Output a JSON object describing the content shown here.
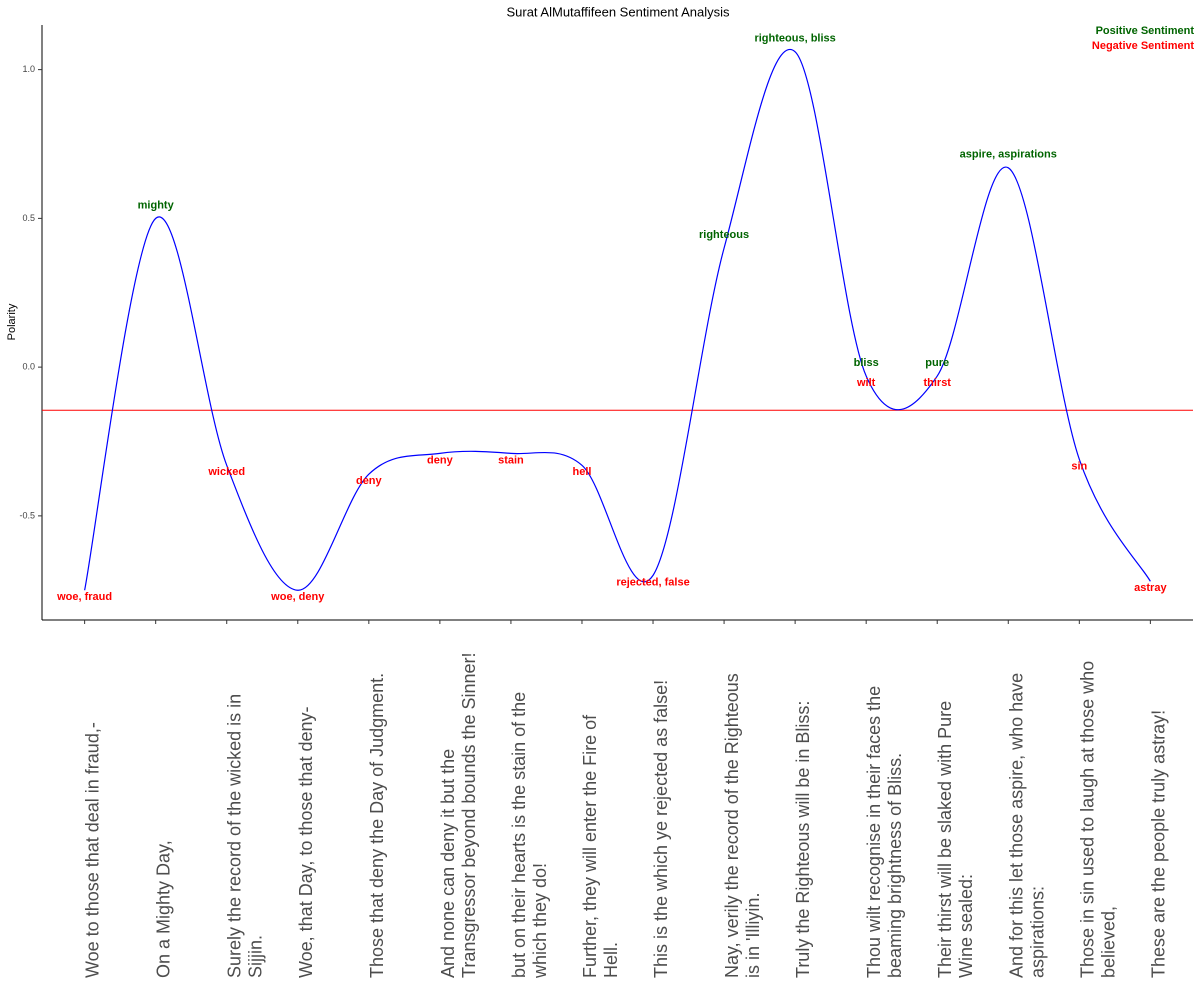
{
  "chart_data": {
    "type": "line",
    "title": "Surat AlMutaffifeen Sentiment Analysis",
    "y_label": "Polarity",
    "categories": [
      "Woe to those that deal in fraud,-",
      "On a Mighty Day,",
      "Surely the record of the wicked is in Sijjin.",
      "Woe, that Day, to those that deny-",
      "Those that deny the Day of Judgment.",
      "And none can deny it but the Transgressor beyond bounds the Sinner!",
      "but on their hearts is the stain of the which they do!",
      "Further, they will enter the Fire of Hell.",
      "This is the which ye rejected as false!",
      "Nay, verily the record of the Righteous is in 'Illiyin.",
      "Truly the Righteous will be in Bliss:",
      "Thou wilt recognise in their faces the beaming brightness of Bliss.",
      "Their thirst will be slaked with Pure Wine sealed:",
      "And for this let those aspire, who have aspirations:",
      "Those in sin used to laugh at those who believed,",
      "These are the people truly astray!"
    ],
    "values": [
      -0.75,
      0.5,
      -0.33,
      -0.75,
      -0.36,
      -0.29,
      -0.29,
      -0.33,
      -0.7,
      0.4,
      1.06,
      -0.03,
      -0.03,
      0.67,
      -0.31,
      -0.72
    ],
    "color": "#0000ff",
    "positive_words": [
      null,
      "mighty",
      null,
      null,
      null,
      null,
      null,
      null,
      null,
      "righteous",
      "righteous, bliss",
      "bliss",
      "pure",
      "aspire, aspirations",
      null,
      null
    ],
    "negative_words": [
      "woe, fraud",
      null,
      "wicked",
      "woe, deny",
      "deny",
      "deny",
      "stain",
      "hell",
      "rejected, false",
      null,
      null,
      "wilt",
      "thirst",
      null,
      "sin",
      "astray"
    ],
    "legend": [
      {
        "name": "Positive Sentiment",
        "color": "#006400"
      },
      {
        "name": "Negative Sentiment",
        "color": "#ff0000"
      }
    ],
    "hline": {
      "value": -0.145,
      "color": "#ff0000"
    },
    "ylim": [
      -0.85,
      1.15
    ],
    "yticks": [
      -0.5,
      {
        "value": 0,
        "label": "0.0"
      },
      0.5,
      {
        "value": 1,
        "label": "1.0"
      }
    ]
  }
}
